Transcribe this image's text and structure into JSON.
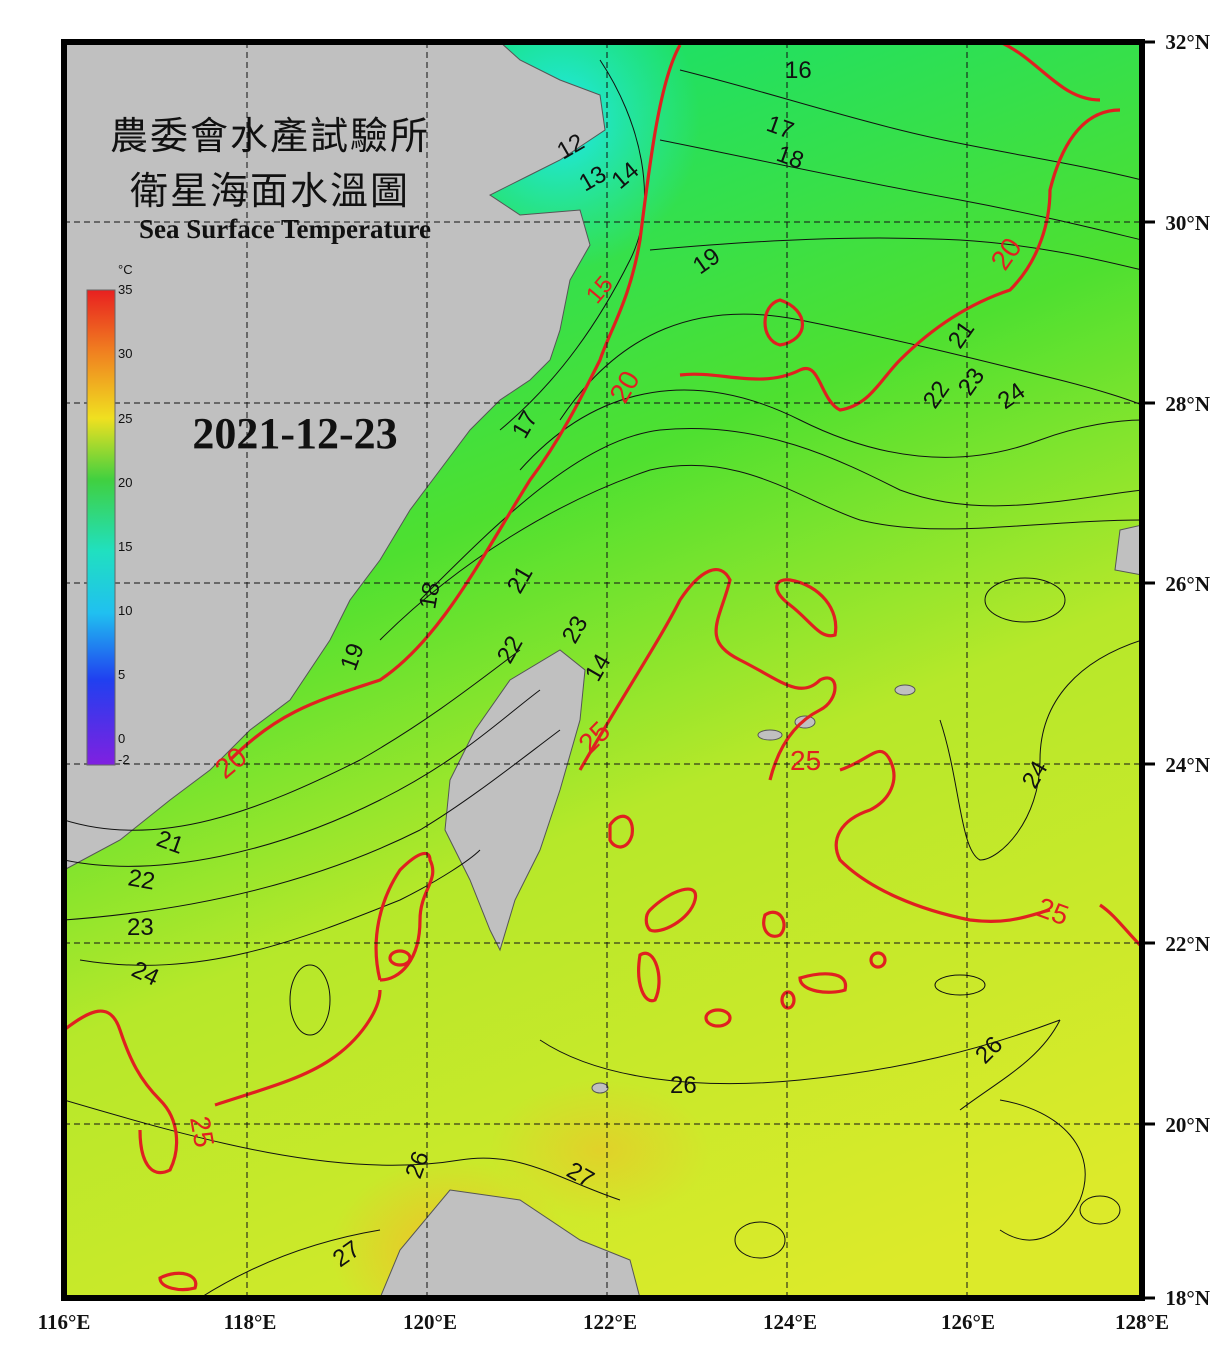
{
  "title_cn_1": "農委會水產試驗所",
  "title_cn_2": "衛星海面水溫圖",
  "title_en": "Sea Surface Temperature",
  "date": "2021-12-23",
  "colorbar": {
    "unit": "°C",
    "ticks": [
      "35",
      "30",
      "25",
      "20",
      "15",
      "10",
      "5",
      "0",
      "-2"
    ],
    "range": [
      -2,
      35
    ]
  },
  "lat_labels": [
    "32°N",
    "30°N",
    "28°N",
    "26°N",
    "24°N",
    "22°N",
    "20°N",
    "18°N"
  ],
  "lon_labels": [
    "116°E",
    "118°E",
    "120°E",
    "122°E",
    "124°E",
    "126°E",
    "128°E"
  ],
  "contour_labels": {
    "c12": "12",
    "c13": "13",
    "c14a": "14",
    "c14b": "14",
    "c15": "15",
    "c16": "16",
    "c17a": "17",
    "c17b": "17",
    "c18a": "18",
    "c18b": "18",
    "c19a": "19",
    "c19b": "19",
    "c20a": "20",
    "c20b": "20",
    "c20c": "20",
    "c21a": "21",
    "c21b": "21",
    "c21c": "21",
    "c22a": "22",
    "c22b": "22",
    "c22c": "22",
    "c23a": "23",
    "c23b": "23",
    "c23c": "23",
    "c24a": "24",
    "c24b": "24",
    "c24c": "24",
    "c25a": "25",
    "c25b": "25",
    "c25c": "25",
    "c25d": "25",
    "c26a": "26",
    "c26b": "26",
    "c26c": "26",
    "c27a": "27",
    "c27b": "27"
  },
  "colors": {
    "land": "#c0c0c0",
    "contour_red": "#e02020",
    "frame": "#000000"
  }
}
